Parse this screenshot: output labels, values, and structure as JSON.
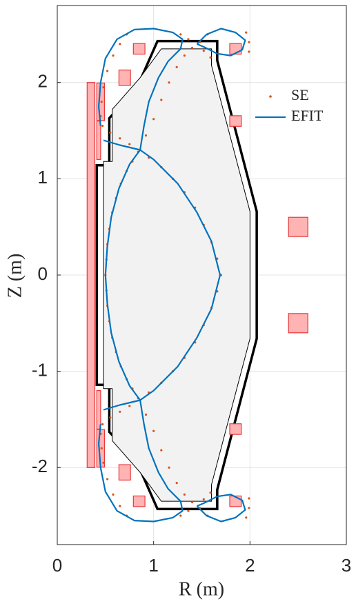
{
  "chart_data": {
    "type": "line",
    "xlabel": "R (m)",
    "ylabel": "Z (m)",
    "xlim": [
      0,
      3
    ],
    "ylim": [
      -2.8,
      2.8
    ],
    "xticks": [
      0,
      1,
      2,
      3
    ],
    "yticks": [
      -2,
      -1,
      0,
      1,
      2
    ],
    "grid": true,
    "legend": "northeast",
    "wall_outer": {
      "x": [
        1.04,
        1.66,
        1.66,
        2.07,
        2.07,
        1.66,
        1.66,
        1.04,
        0.82,
        0.54,
        0.54,
        0.41,
        0.41,
        0.54,
        0.54,
        0.82,
        1.04
      ],
      "values": [
        2.43,
        2.43,
        2.23,
        0.66,
        -0.66,
        -2.23,
        -2.43,
        -2.43,
        -1.93,
        -1.63,
        -1.14,
        -1.14,
        1.14,
        1.14,
        1.63,
        1.93,
        2.43
      ]
    },
    "wall_inner": {
      "x": [
        1.08,
        1.6,
        1.6,
        2.0,
        2.0,
        1.6,
        1.6,
        1.08,
        0.86,
        0.57,
        0.57,
        0.48,
        0.48,
        0.57,
        0.57,
        0.86,
        1.08
      ],
      "values": [
        2.35,
        2.35,
        2.18,
        0.66,
        -0.66,
        -2.18,
        -2.35,
        -2.35,
        -2.05,
        -1.72,
        -1.18,
        -1.18,
        1.18,
        1.18,
        1.72,
        2.05,
        2.35
      ]
    },
    "coils": [
      {
        "x": 0.35,
        "y": 0,
        "w": 0.08,
        "h": 4.0
      },
      {
        "x": 0.45,
        "y": 1.8,
        "w": 0.08,
        "h": 0.39
      },
      {
        "x": 0.45,
        "y": -1.8,
        "w": 0.08,
        "h": 0.39
      },
      {
        "x": 0.43,
        "y": 1.4,
        "w": 0.04,
        "h": 0.4
      },
      {
        "x": 0.43,
        "y": -1.4,
        "w": 0.04,
        "h": 0.4
      },
      {
        "x": 0.7,
        "y": 2.05,
        "w": 0.12,
        "h": 0.16
      },
      {
        "x": 0.7,
        "y": -2.05,
        "w": 0.12,
        "h": 0.16
      },
      {
        "x": 0.85,
        "y": 2.35,
        "w": 0.12,
        "h": 0.11
      },
      {
        "x": 0.85,
        "y": -2.35,
        "w": 0.12,
        "h": 0.11
      },
      {
        "x": 1.85,
        "y": 2.35,
        "w": 0.12,
        "h": 0.11
      },
      {
        "x": 1.85,
        "y": -2.35,
        "w": 0.12,
        "h": 0.11
      },
      {
        "x": 1.85,
        "y": 1.6,
        "w": 0.12,
        "h": 0.11
      },
      {
        "x": 1.85,
        "y": -1.6,
        "w": 0.12,
        "h": 0.11
      },
      {
        "x": 2.5,
        "y": 0.5,
        "w": 0.2,
        "h": 0.2
      },
      {
        "x": 2.5,
        "y": -0.5,
        "w": 0.2,
        "h": 0.2
      }
    ],
    "series": [
      {
        "name": "SE",
        "color": "#d95319",
        "mode": "markers",
        "x": [
          0.84,
          0.78,
          0.72,
          0.66,
          0.61,
          0.57,
          0.54,
          0.52,
          0.51,
          0.5,
          0.51,
          0.52,
          0.54,
          0.57,
          0.61,
          0.66,
          0.72,
          0.78,
          0.84,
          0.95,
          1.08,
          1.2,
          1.32,
          1.43,
          1.52,
          1.6,
          1.66,
          1.7,
          1.66,
          1.6,
          1.52,
          1.43,
          1.32,
          1.2,
          1.08,
          0.95,
          0.75,
          0.65,
          0.55,
          0.47,
          0.92,
          1.0,
          1.08,
          1.16,
          1.24,
          1.32,
          1.4,
          1.48,
          1.56,
          1.28,
          1.36,
          1.52,
          1.59,
          0.72,
          0.65,
          0.58,
          0.52,
          0.48,
          0.46,
          0.45,
          1.96,
          1.99,
          1.99,
          0.75,
          0.65,
          0.55,
          0.47,
          0.92,
          1.0,
          1.08,
          1.16,
          1.24,
          1.32,
          1.4,
          1.48,
          1.56,
          1.28,
          1.36,
          1.52,
          1.59,
          0.72,
          0.65,
          0.58,
          0.52,
          0.48,
          0.46,
          0.45,
          1.96,
          1.99,
          1.99
        ],
        "values": [
          1.28,
          1.18,
          1.08,
          0.95,
          0.8,
          0.65,
          0.48,
          0.32,
          0.16,
          0,
          -0.16,
          -0.32,
          -0.48,
          -0.65,
          -0.8,
          -0.95,
          -1.08,
          -1.18,
          -1.28,
          1.22,
          1.12,
          1.0,
          0.86,
          0.7,
          0.52,
          0.34,
          0.17,
          0,
          -0.17,
          -0.34,
          -0.52,
          -0.7,
          -0.86,
          -1.0,
          -1.12,
          -1.22,
          1.36,
          1.42,
          1.48,
          1.55,
          1.45,
          1.62,
          1.82,
          2.0,
          2.16,
          2.28,
          2.36,
          2.42,
          2.5,
          2.5,
          2.45,
          2.33,
          2.26,
          2.5,
          2.4,
          2.28,
          2.12,
          1.95,
          1.8,
          1.65,
          2.52,
          2.42,
          2.32,
          -1.36,
          -1.42,
          -1.48,
          -1.55,
          -1.45,
          -1.62,
          -1.82,
          -2.0,
          -2.16,
          -2.28,
          -2.36,
          -2.42,
          -2.5,
          -2.5,
          -2.45,
          -2.33,
          -2.26,
          -2.5,
          -2.4,
          -2.28,
          -2.12,
          -1.95,
          -1.8,
          -1.65,
          -2.52,
          -2.42,
          -2.32
        ]
      },
      {
        "name": "EFIT",
        "color": "#0072bd",
        "x": [
          0.86,
          0.75,
          0.64,
          0.56,
          0.52,
          0.5,
          0.52,
          0.56,
          0.64,
          0.75,
          0.86,
          1.0,
          1.25,
          1.45,
          1.6,
          1.69,
          1.6,
          1.45,
          1.25,
          1.0,
          0.86,
          null,
          0.48,
          0.65,
          0.86,
          0.9,
          0.95,
          1.05,
          1.15,
          1.28,
          1.3,
          1.2,
          1.0,
          0.8,
          0.62,
          0.5,
          0.45,
          0.43,
          0.45,
          null,
          1.45,
          1.55,
          1.7,
          1.85,
          1.95,
          1.92,
          1.8,
          1.66,
          1.52,
          1.45,
          null,
          0.48,
          0.65,
          0.86,
          0.9,
          0.95,
          1.05,
          1.15,
          1.28,
          1.3,
          1.2,
          1.0,
          0.8,
          0.62,
          0.5,
          0.45,
          0.43,
          0.45,
          null,
          1.45,
          1.55,
          1.7,
          1.85,
          1.95,
          1.92,
          1.8,
          1.66,
          1.52,
          1.45
        ],
        "values": [
          1.3,
          1.15,
          0.9,
          0.6,
          0.3,
          0,
          -0.3,
          -0.6,
          -0.9,
          -1.15,
          -1.3,
          -1.2,
          -0.95,
          -0.65,
          -0.35,
          0,
          0.35,
          0.65,
          0.95,
          1.2,
          1.3,
          null,
          1.4,
          1.35,
          1.3,
          1.55,
          1.8,
          2.05,
          2.22,
          2.35,
          2.45,
          2.52,
          2.56,
          2.55,
          2.45,
          2.25,
          2.0,
          1.75,
          1.55,
          null,
          2.4,
          2.5,
          2.56,
          2.52,
          2.44,
          2.34,
          2.28,
          2.3,
          2.37,
          2.4,
          null,
          -1.4,
          -1.35,
          -1.3,
          -1.55,
          -1.8,
          -2.05,
          -2.22,
          -2.35,
          -2.45,
          -2.52,
          -2.56,
          -2.55,
          -2.45,
          -2.25,
          -2.0,
          -1.75,
          -1.55,
          null,
          -2.4,
          -2.5,
          -2.56,
          -2.52,
          -2.44,
          -2.34,
          -2.28,
          -2.3,
          -2.37,
          -2.4
        ]
      }
    ]
  }
}
